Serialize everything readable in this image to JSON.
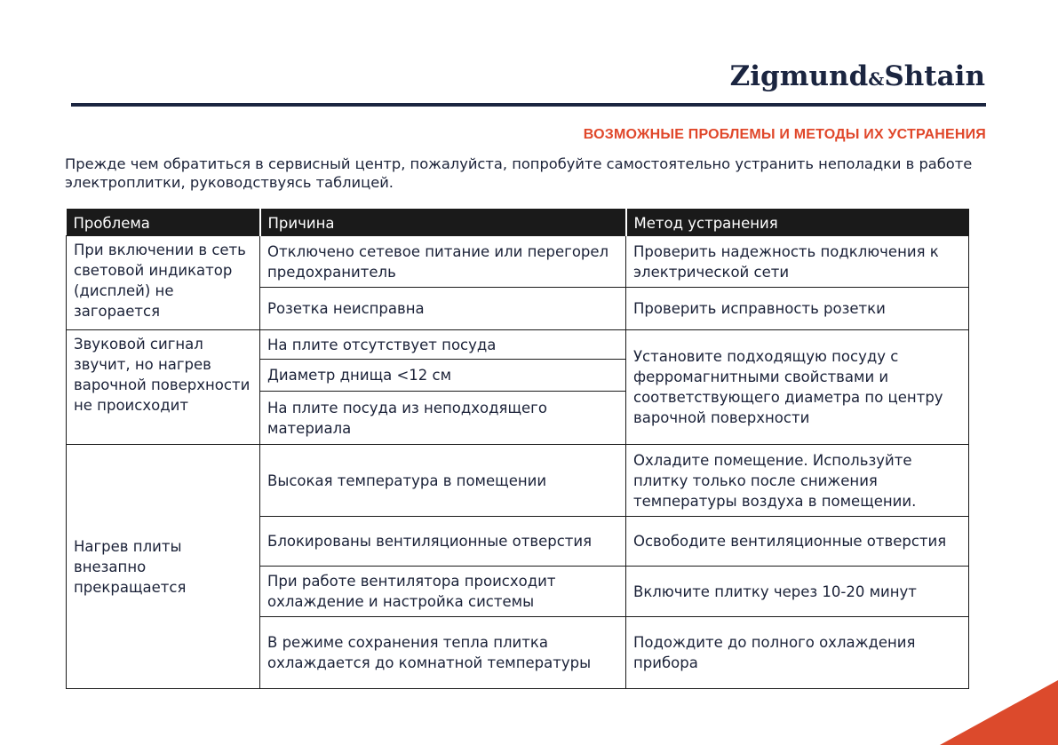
{
  "logo": {
    "name": "Zigmund",
    "amp": "&",
    "name2": "Shtain"
  },
  "section_title": "ВОЗМОЖНЫЕ ПРОБЛЕМЫ И МЕТОДЫ ИХ УСТРАНЕНИЯ",
  "intro": "Прежде чем обратиться в сервисный центр, пожалуйста, попробуйте самостоятельно устранить неполадки в работе электроплитки, руководствуясь таблицей.",
  "table": {
    "headers": [
      "Проблема",
      "Причина",
      "Метод устранения"
    ],
    "groups": [
      {
        "problem": "При включении в сеть световой индикатор (дисплей) не загорается",
        "rows": [
          {
            "cause": "Отключено сетевое питание или перегорел предохранитель",
            "method": "Проверить надежность подключения к электрической сети"
          },
          {
            "cause": "Розетка неисправна",
            "method": "Проверить исправность розетки"
          }
        ]
      },
      {
        "problem": "Звуковой сигнал звучит, но нагрев варочной поверхности не происходит",
        "shared_method": "Установите подходящую посуду с ферромагнитными свойствами и соответствующего диаметра по центру варочной поверхности",
        "rows": [
          {
            "cause": "На плите отсутствует посуда"
          },
          {
            "cause": "Диаметр днища <12 см"
          },
          {
            "cause": "На плите посуда из неподходящего материала"
          }
        ]
      },
      {
        "problem": "Нагрев плиты внезапно прекращается",
        "rows": [
          {
            "cause": "Высокая температура в помещении",
            "method": "Охладите помещение. Используйте плитку только после снижения температуры воздуха в помещении."
          },
          {
            "cause": "Блокированы вентиляционные отверстия",
            "method": "Освободите вентиляционные отверстия"
          },
          {
            "cause": "При работе вентилятора происходит охлаждение и настройка системы",
            "method": "Включите плитку через 10-20 минут"
          },
          {
            "cause": "В режиме сохранения тепла плитка охлаждается до комнатной температуры",
            "method": "Подождите до полного охлаждения прибора"
          }
        ]
      }
    ]
  },
  "colors": {
    "accent": "#dc4a2c",
    "navy": "#1b2540",
    "header_bg": "#1a1a1a"
  }
}
